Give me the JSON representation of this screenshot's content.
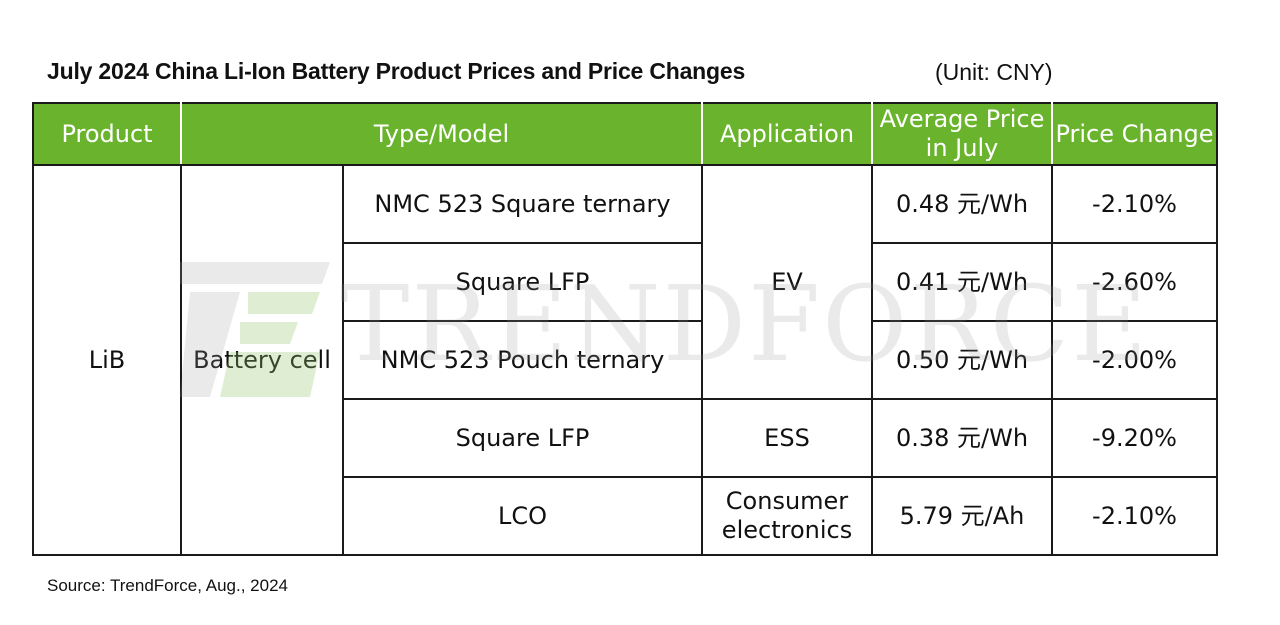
{
  "title": "July 2024 China Li-Ion Battery Product Prices and Price Changes",
  "unit": "(Unit: CNY)",
  "source": "Source: TrendForce, Aug., 2024",
  "watermark": "TRENDFORCE",
  "colors": {
    "header_bg": "#6ab42d",
    "header_text": "#ffffff",
    "border": "#1a1a1a"
  },
  "headers": {
    "product": "Product",
    "type_model": "Type/Model",
    "application": "Application",
    "avg_price_line1": "Average Price",
    "avg_price_line2": "in July",
    "price_change": "Price Change"
  },
  "product": "LiB",
  "category": "Battery cell",
  "rows": [
    {
      "model": "NMC 523 Square ternary",
      "price": "0.48 元/Wh",
      "change": "-2.10%"
    },
    {
      "model": "Square LFP",
      "price": "0.41 元/Wh",
      "change": "-2.60%"
    },
    {
      "model": "NMC 523 Pouch ternary",
      "price": "0.50 元/Wh",
      "change": "-2.00%"
    },
    {
      "model": "Square LFP",
      "price": "0.38 元/Wh",
      "change": "-9.20%"
    },
    {
      "model": "LCO",
      "price": "5.79 元/Ah",
      "change": "-2.10%"
    }
  ],
  "applications": {
    "ev": "EV",
    "ess": "ESS",
    "consumer_line1": "Consumer",
    "consumer_line2": "electronics"
  }
}
